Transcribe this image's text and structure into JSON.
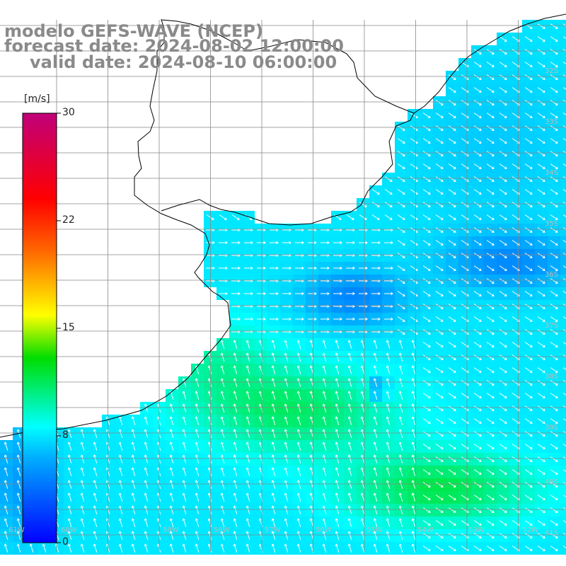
{
  "title": {
    "line1": "modelo GEFS-WAVE (NCEP)",
    "line2": "forecast date: 2024-08-02 12:00:00",
    "line3": "valid date: 2024-08-10 06:00:00"
  },
  "colorbar": {
    "unit": "[m/s]",
    "ticks": [
      "30",
      "22",
      "15",
      "8",
      "0"
    ],
    "colors": [
      "#0000ff",
      "#00a0ff",
      "#00ffff",
      "#00dd00",
      "#ffff00",
      "#ff8000",
      "#ff0000",
      "#c0007a"
    ]
  },
  "map": {
    "lat_labels": [
      "32S",
      "33S",
      "34S",
      "35S",
      "36S",
      "37S",
      "38S",
      "39S",
      "40S",
      "41S"
    ],
    "lon_labels": [
      "61W",
      "60W",
      "59W",
      "58W",
      "57W",
      "56W",
      "55W",
      "54W",
      "53W",
      "52W",
      "51W"
    ],
    "land_color": "#ffffff",
    "grid_color": "#888888",
    "coast_color": "#000000",
    "arrow_color": "#ffffff"
  }
}
